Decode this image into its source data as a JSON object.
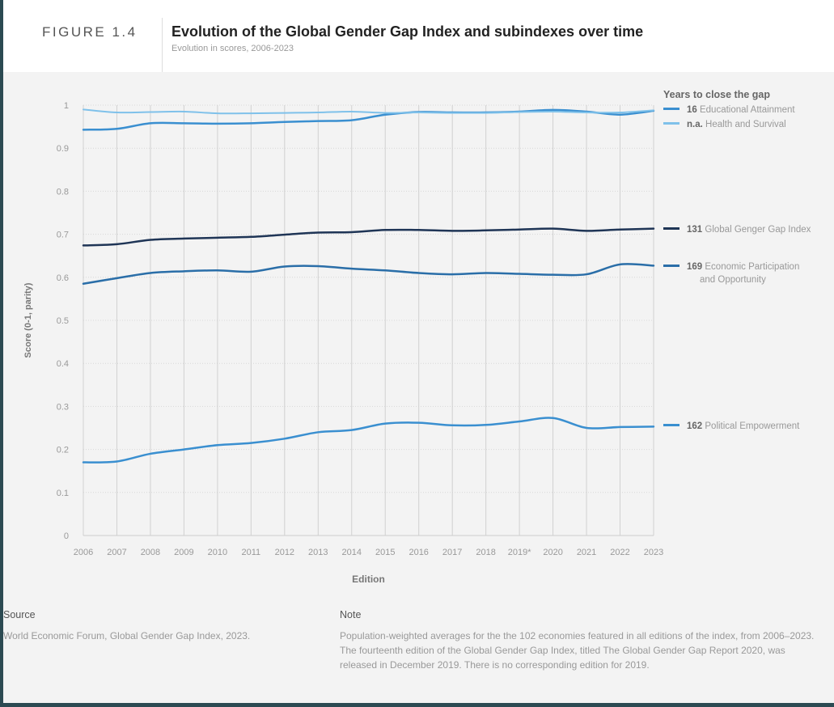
{
  "figure_label": "FIGURE 1.4",
  "title": "Evolution of the Global Gender Gap Index and subindexes over time",
  "subtitle": "Evolution in scores, 2006-2023",
  "legend_title": "Years to close the gap",
  "chart_data": {
    "type": "line",
    "xlabel": "Edition",
    "ylabel": "Score (0-1, parity)",
    "ylim": [
      0,
      1
    ],
    "yticks": [
      "0",
      "0.1",
      "0.2",
      "0.3",
      "0.4",
      "0.5",
      "0.6",
      "0.7",
      "0.8",
      "0.9",
      "1"
    ],
    "categories": [
      "2006",
      "2007",
      "2008",
      "2009",
      "2010",
      "2011",
      "2012",
      "2013",
      "2014",
      "2015",
      "2016",
      "2017",
      "2018",
      "2019*",
      "2020",
      "2021",
      "2022",
      "2023"
    ],
    "grid": true,
    "legend_placement": "right",
    "series": [
      {
        "name": "Educational Attainment",
        "years_to_close": "16",
        "color": "#3a8fd0",
        "values": [
          0.943,
          0.945,
          0.958,
          0.958,
          0.957,
          0.958,
          0.961,
          0.963,
          0.965,
          0.978,
          0.984,
          0.983,
          0.983,
          0.985,
          0.989,
          0.985,
          0.978,
          0.987
        ]
      },
      {
        "name": "Health and Survival",
        "years_to_close": "n.a.",
        "color": "#7fc1ea",
        "values": [
          0.99,
          0.983,
          0.984,
          0.985,
          0.981,
          0.981,
          0.982,
          0.983,
          0.985,
          0.982,
          0.983,
          0.982,
          0.982,
          0.984,
          0.985,
          0.983,
          0.983,
          0.988
        ]
      },
      {
        "name": "Global Genger Gap Index",
        "years_to_close": "131",
        "color": "#1f3556",
        "values": [
          0.674,
          0.677,
          0.687,
          0.69,
          0.692,
          0.694,
          0.699,
          0.704,
          0.705,
          0.71,
          0.71,
          0.708,
          0.709,
          0.711,
          0.713,
          0.708,
          0.711,
          0.713
        ]
      },
      {
        "name": "Economic Participation",
        "name2": "and Opportunity",
        "years_to_close": "169",
        "color": "#2a6ea8",
        "values": [
          0.585,
          0.598,
          0.61,
          0.614,
          0.616,
          0.613,
          0.625,
          0.626,
          0.62,
          0.616,
          0.61,
          0.607,
          0.61,
          0.608,
          0.606,
          0.607,
          0.63,
          0.627
        ]
      },
      {
        "name": "Political Empowerment",
        "years_to_close": "162",
        "color": "#3a8fd0",
        "values": [
          0.17,
          0.172,
          0.19,
          0.2,
          0.21,
          0.215,
          0.225,
          0.24,
          0.245,
          0.26,
          0.262,
          0.256,
          0.257,
          0.265,
          0.273,
          0.25,
          0.252,
          0.253
        ]
      }
    ]
  },
  "footer": {
    "source_heading": "Source",
    "source_text": "World Economic Forum, Global Gender Gap Index, 2023.",
    "note_heading": "Note",
    "note_text": "Population-weighted averages for the the 102 economies featured in all editions of the index, from 2006–2023. The fourteenth edition of the Global Gender Gap Index, titled The Global Gender Gap Report 2020, was released in December 2019. There is no corresponding edition for 2019."
  }
}
